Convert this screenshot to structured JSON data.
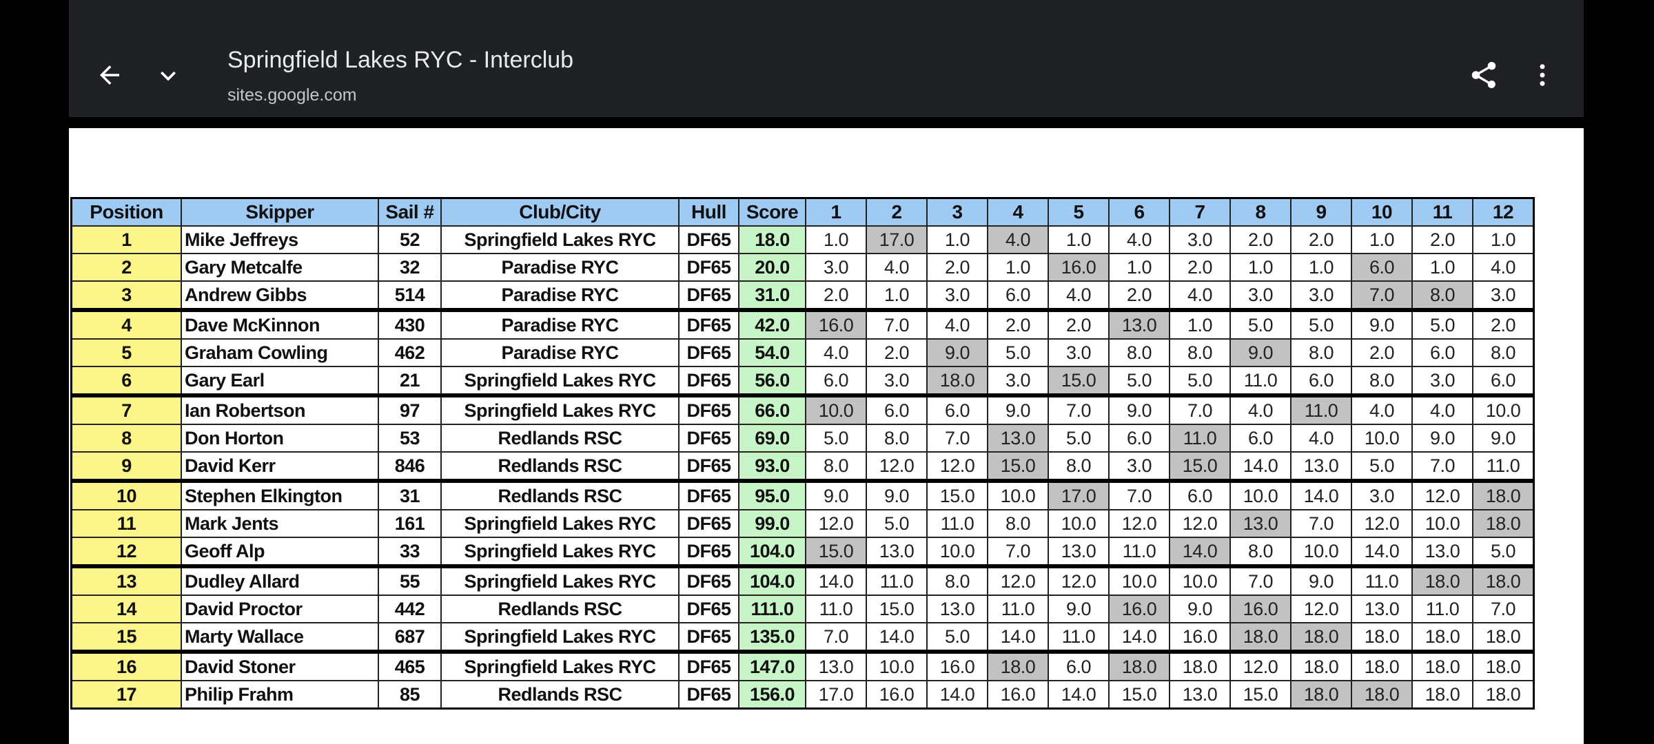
{
  "browser": {
    "title": "Springfield Lakes RYC - Interclub",
    "url": "sites.google.com",
    "icons": [
      "back-arrow-icon",
      "chevron-down-icon",
      "share-icon",
      "more-vert-icon"
    ]
  },
  "table": {
    "headers": [
      "Position",
      "Skipper",
      "Sail #",
      "Club/City",
      "Hull",
      "Score",
      "1",
      "2",
      "3",
      "4",
      "5",
      "6",
      "7",
      "8",
      "9",
      "10",
      "11",
      "12"
    ],
    "colors": {
      "header": "#9fcaf4",
      "position": "#fbf58a",
      "score": "#c8f5c8",
      "discard": "#c2c2c2"
    },
    "rows": [
      {
        "pos": "1",
        "skipper": "Mike Jeffreys",
        "sail": "52",
        "club": "Springfield Lakes RYC",
        "hull": "DF65",
        "score": "18.0",
        "races": [
          "1.0",
          "17.0",
          "1.0",
          "4.0",
          "1.0",
          "4.0",
          "3.0",
          "2.0",
          "2.0",
          "1.0",
          "2.0",
          "1.0"
        ],
        "discards": [
          2,
          4
        ]
      },
      {
        "pos": "2",
        "skipper": "Gary Metcalfe",
        "sail": "32",
        "club": "Paradise RYC",
        "hull": "DF65",
        "score": "20.0",
        "races": [
          "3.0",
          "4.0",
          "2.0",
          "1.0",
          "16.0",
          "1.0",
          "2.0",
          "1.0",
          "1.0",
          "6.0",
          "1.0",
          "4.0"
        ],
        "discards": [
          5,
          10
        ]
      },
      {
        "pos": "3",
        "skipper": "Andrew Gibbs",
        "sail": "514",
        "club": "Paradise RYC",
        "hull": "DF65",
        "score": "31.0",
        "races": [
          "2.0",
          "1.0",
          "3.0",
          "6.0",
          "4.0",
          "2.0",
          "4.0",
          "3.0",
          "3.0",
          "7.0",
          "8.0",
          "3.0"
        ],
        "discards": [
          10,
          11
        ]
      },
      {
        "pos": "4",
        "skipper": "Dave McKinnon",
        "sail": "430",
        "club": "Paradise RYC",
        "hull": "DF65",
        "score": "42.0",
        "races": [
          "16.0",
          "7.0",
          "4.0",
          "2.0",
          "2.0",
          "13.0",
          "1.0",
          "5.0",
          "5.0",
          "9.0",
          "5.0",
          "2.0"
        ],
        "discards": [
          1,
          6
        ]
      },
      {
        "pos": "5",
        "skipper": "Graham Cowling",
        "sail": "462",
        "club": "Paradise RYC",
        "hull": "DF65",
        "score": "54.0",
        "races": [
          "4.0",
          "2.0",
          "9.0",
          "5.0",
          "3.0",
          "8.0",
          "8.0",
          "9.0",
          "8.0",
          "2.0",
          "6.0",
          "8.0"
        ],
        "discards": [
          3,
          8
        ]
      },
      {
        "pos": "6",
        "skipper": "Gary Earl",
        "sail": "21",
        "club": "Springfield Lakes RYC",
        "hull": "DF65",
        "score": "56.0",
        "races": [
          "6.0",
          "3.0",
          "18.0",
          "3.0",
          "15.0",
          "5.0",
          "5.0",
          "11.0",
          "6.0",
          "8.0",
          "3.0",
          "6.0"
        ],
        "discards": [
          3,
          5
        ]
      },
      {
        "pos": "7",
        "skipper": "Ian Robertson",
        "sail": "97",
        "club": "Springfield Lakes RYC",
        "hull": "DF65",
        "score": "66.0",
        "races": [
          "10.0",
          "6.0",
          "6.0",
          "9.0",
          "7.0",
          "9.0",
          "7.0",
          "4.0",
          "11.0",
          "4.0",
          "4.0",
          "10.0"
        ],
        "discards": [
          1,
          9
        ]
      },
      {
        "pos": "8",
        "skipper": "Don Horton",
        "sail": "53",
        "club": "Redlands RSC",
        "hull": "DF65",
        "score": "69.0",
        "races": [
          "5.0",
          "8.0",
          "7.0",
          "13.0",
          "5.0",
          "6.0",
          "11.0",
          "6.0",
          "4.0",
          "10.0",
          "9.0",
          "9.0"
        ],
        "discards": [
          4,
          7
        ]
      },
      {
        "pos": "9",
        "skipper": "David Kerr",
        "sail": "846",
        "club": "Redlands RSC",
        "hull": "DF65",
        "score": "93.0",
        "races": [
          "8.0",
          "12.0",
          "12.0",
          "15.0",
          "8.0",
          "3.0",
          "15.0",
          "14.0",
          "13.0",
          "5.0",
          "7.0",
          "11.0"
        ],
        "discards": [
          4,
          7
        ]
      },
      {
        "pos": "10",
        "skipper": "Stephen Elkington",
        "sail": "31",
        "club": "Redlands RSC",
        "hull": "DF65",
        "score": "95.0",
        "races": [
          "9.0",
          "9.0",
          "15.0",
          "10.0",
          "17.0",
          "7.0",
          "6.0",
          "10.0",
          "14.0",
          "3.0",
          "12.0",
          "18.0"
        ],
        "discards": [
          5,
          12
        ]
      },
      {
        "pos": "11",
        "skipper": "Mark Jents",
        "sail": "161",
        "club": "Springfield Lakes RYC",
        "hull": "DF65",
        "score": "99.0",
        "races": [
          "12.0",
          "5.0",
          "11.0",
          "8.0",
          "10.0",
          "12.0",
          "12.0",
          "13.0",
          "7.0",
          "12.0",
          "10.0",
          "18.0"
        ],
        "discards": [
          8,
          12
        ]
      },
      {
        "pos": "12",
        "skipper": "Geoff Alp",
        "sail": "33",
        "club": "Springfield Lakes RYC",
        "hull": "DF65",
        "score": "104.0",
        "races": [
          "15.0",
          "13.0",
          "10.0",
          "7.0",
          "13.0",
          "11.0",
          "14.0",
          "8.0",
          "10.0",
          "14.0",
          "13.0",
          "5.0"
        ],
        "discards": [
          1,
          7
        ]
      },
      {
        "pos": "13",
        "skipper": "Dudley Allard",
        "sail": "55",
        "club": "Springfield Lakes RYC",
        "hull": "DF65",
        "score": "104.0",
        "races": [
          "14.0",
          "11.0",
          "8.0",
          "12.0",
          "12.0",
          "10.0",
          "10.0",
          "7.0",
          "9.0",
          "11.0",
          "18.0",
          "18.0"
        ],
        "discards": [
          11,
          12
        ]
      },
      {
        "pos": "14",
        "skipper": "David Proctor",
        "sail": "442",
        "club": "Redlands RSC",
        "hull": "DF65",
        "score": "111.0",
        "races": [
          "11.0",
          "15.0",
          "13.0",
          "11.0",
          "9.0",
          "16.0",
          "9.0",
          "16.0",
          "12.0",
          "13.0",
          "11.0",
          "7.0"
        ],
        "discards": [
          6,
          8
        ]
      },
      {
        "pos": "15",
        "skipper": "Marty Wallace",
        "sail": "687",
        "club": "Springfield Lakes RYC",
        "hull": "DF65",
        "score": "135.0",
        "races": [
          "7.0",
          "14.0",
          "5.0",
          "14.0",
          "11.0",
          "14.0",
          "16.0",
          "18.0",
          "18.0",
          "18.0",
          "18.0",
          "18.0"
        ],
        "discards": [
          8,
          9
        ]
      },
      {
        "pos": "16",
        "skipper": "David Stoner",
        "sail": "465",
        "club": "Springfield Lakes RYC",
        "hull": "DF65",
        "score": "147.0",
        "races": [
          "13.0",
          "10.0",
          "16.0",
          "18.0",
          "6.0",
          "18.0",
          "18.0",
          "12.0",
          "18.0",
          "18.0",
          "18.0",
          "18.0"
        ],
        "discards": [
          4,
          6
        ]
      },
      {
        "pos": "17",
        "skipper": "Philip Frahm",
        "sail": "85",
        "club": "Redlands RSC",
        "hull": "DF65",
        "score": "156.0",
        "races": [
          "17.0",
          "16.0",
          "14.0",
          "16.0",
          "14.0",
          "15.0",
          "13.0",
          "15.0",
          "18.0",
          "18.0",
          "18.0",
          "18.0"
        ],
        "discards": [
          9,
          10
        ]
      }
    ]
  }
}
